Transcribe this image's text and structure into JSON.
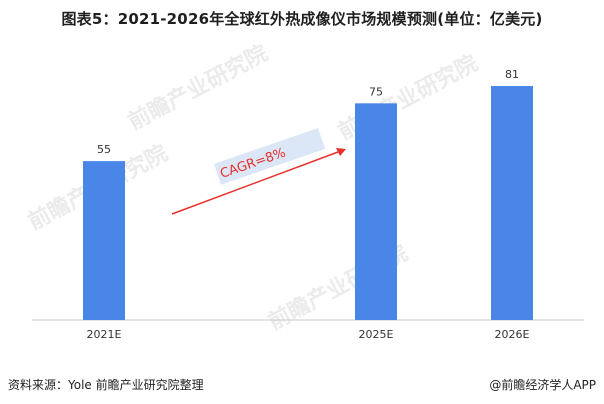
{
  "chart_data": {
    "type": "bar",
    "title": "图表5：2021-2026年全球红外热成像仪市场规模预测(单位：亿美元)",
    "categories": [
      "2021E",
      "2025E",
      "2026E"
    ],
    "values": [
      55,
      75,
      81
    ],
    "ylim": [
      0,
      90
    ],
    "bar_color": "#4a86e8",
    "annotation": "CAGR=8%",
    "arrow_color": "#e8302a",
    "annotation_bg": "#dbe6f7",
    "xlabel": "",
    "ylabel": "",
    "grid": false
  },
  "footer": {
    "source": "资料来源：Yole 前瞻产业研究院整理",
    "brand": "@前瞻经济学人APP"
  },
  "watermark": "前瞻产业研究院"
}
